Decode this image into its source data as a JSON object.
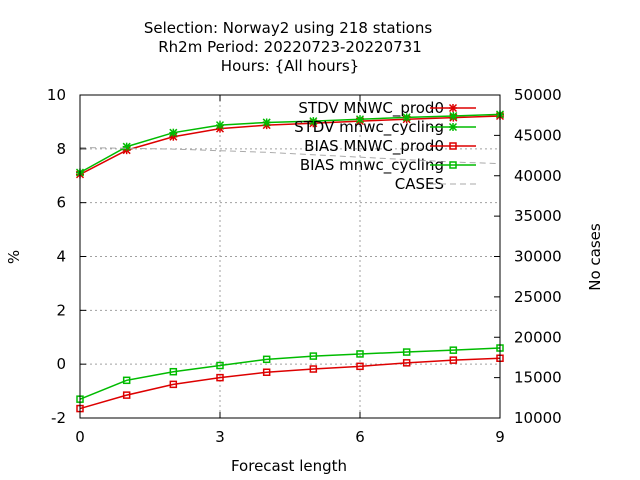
{
  "chart_data": {
    "type": "line",
    "title_lines": [
      "Selection: Norway2 using   218 stations",
      "Rh2m   Period: 20220723-20220731",
      "Hours: {All hours}"
    ],
    "xlabel": "Forecast length",
    "ylabel": "%",
    "y2label": "No cases",
    "xlim": [
      0,
      9
    ],
    "ylim": [
      -2,
      10
    ],
    "y2lim": [
      10000,
      50000
    ],
    "x_ticks": [
      0,
      3,
      6,
      9
    ],
    "y_ticks": [
      -2,
      0,
      2,
      4,
      6,
      8,
      10
    ],
    "y2_ticks": [
      10000,
      15000,
      20000,
      25000,
      30000,
      35000,
      40000,
      45000,
      50000
    ],
    "grid": true,
    "legend_position": "top-right",
    "x": [
      0,
      1,
      2,
      3,
      4,
      5,
      6,
      7,
      8,
      9
    ],
    "series": [
      {
        "name": "STDV MNWC_prod0",
        "axis": "y",
        "color": "#dd0000",
        "marker": "x-star",
        "values": [
          7.05,
          7.95,
          8.45,
          8.75,
          8.88,
          8.95,
          9.03,
          9.1,
          9.16,
          9.22
        ]
      },
      {
        "name": "STDV mnwc_cycling",
        "axis": "y",
        "color": "#00bb00",
        "marker": "x-star",
        "values": [
          7.12,
          8.08,
          8.6,
          8.88,
          8.98,
          9.03,
          9.1,
          9.17,
          9.22,
          9.28
        ]
      },
      {
        "name": "BIAS MNWC_prod0",
        "axis": "y",
        "color": "#dd0000",
        "marker": "square",
        "values": [
          -1.65,
          -1.15,
          -0.75,
          -0.5,
          -0.3,
          -0.18,
          -0.08,
          0.05,
          0.15,
          0.22
        ]
      },
      {
        "name": "BIAS mnwc_cycling",
        "axis": "y",
        "color": "#00bb00",
        "marker": "square",
        "values": [
          -1.3,
          -0.6,
          -0.28,
          -0.05,
          0.18,
          0.3,
          0.38,
          0.45,
          0.52,
          0.6
        ]
      },
      {
        "name": "CASES",
        "axis": "y2",
        "color": "#aaaaaa",
        "marker": "none",
        "dashed": true,
        "values": [
          43500,
          43400,
          43300,
          43100,
          42900,
          42600,
          42300,
          42000,
          41700,
          41500
        ]
      }
    ]
  }
}
